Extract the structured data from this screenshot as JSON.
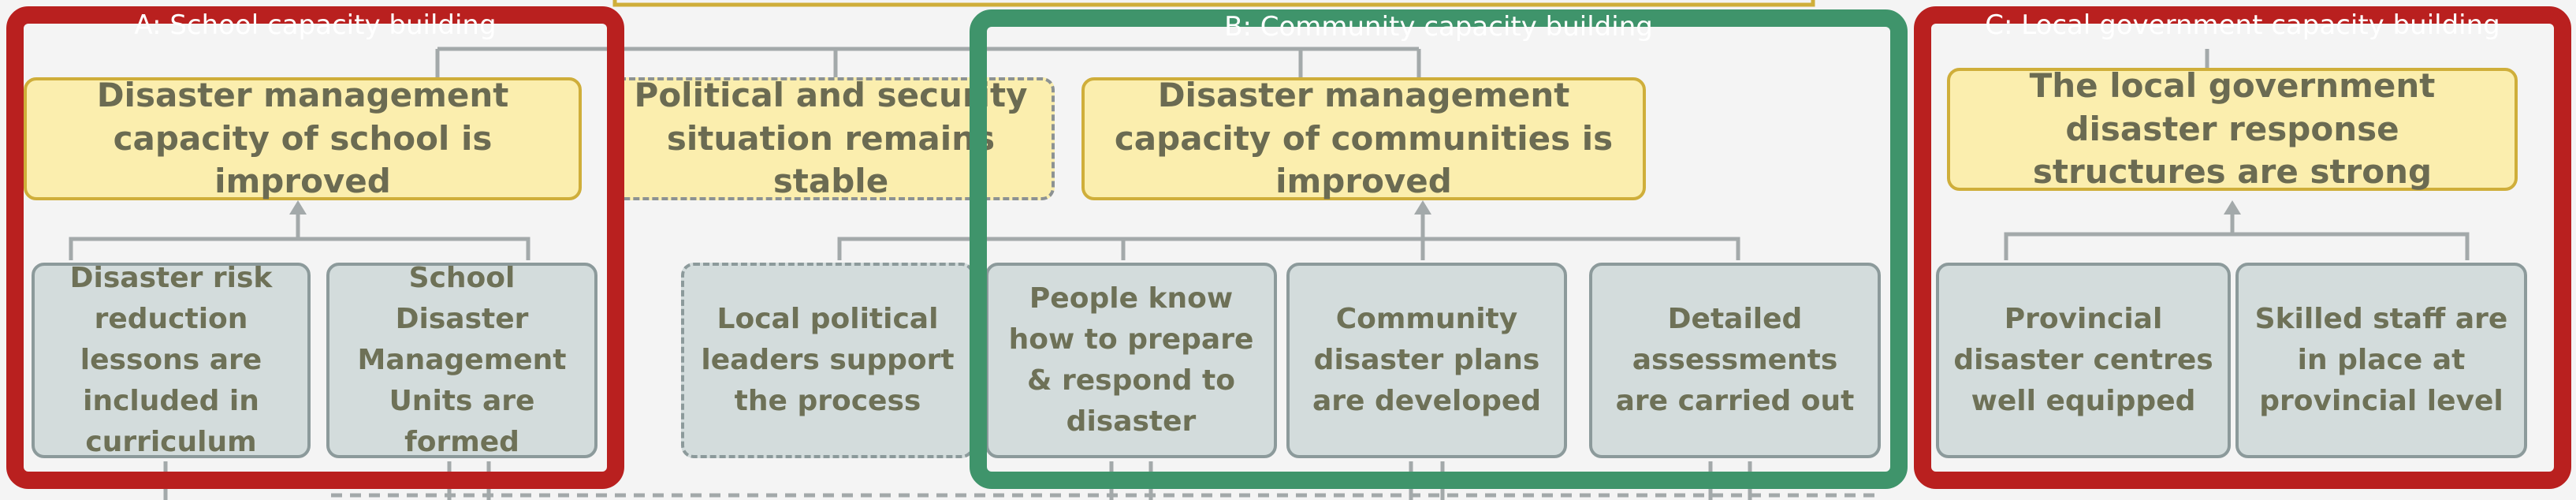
{
  "sections": {
    "a": {
      "label": "A: School capacity building"
    },
    "b": {
      "label": "B: Community capacity building"
    },
    "c": {
      "label": "C: Local government capacity building"
    }
  },
  "outcomes": {
    "school": "Disaster management capacity of school is improved",
    "political": "Political and security situation remains stable",
    "community": "Disaster management capacity of communities is improved",
    "local_gov": "The local government disaster response structures are strong"
  },
  "outputs": {
    "drr_lessons": "Disaster risk reduction lessons are included in curriculum",
    "sdmu": "School Disaster Management Units are formed",
    "political_leaders": "Local political leaders support the process",
    "people_prepare": "People know how to prepare & respond to disaster",
    "community_plans": "Community disaster plans are developed",
    "assessments": "Detailed assessments are carried out",
    "provincial_centres": "Provincial disaster centres well equipped",
    "skilled_staff": "Skilled staff are in place at provincial level"
  },
  "colors": {
    "section_a": "#b9201f",
    "section_b": "#3f946b",
    "section_c": "#b9201f",
    "outcome_fill": "#fbeeae",
    "output_fill": "#d3dcdc"
  }
}
